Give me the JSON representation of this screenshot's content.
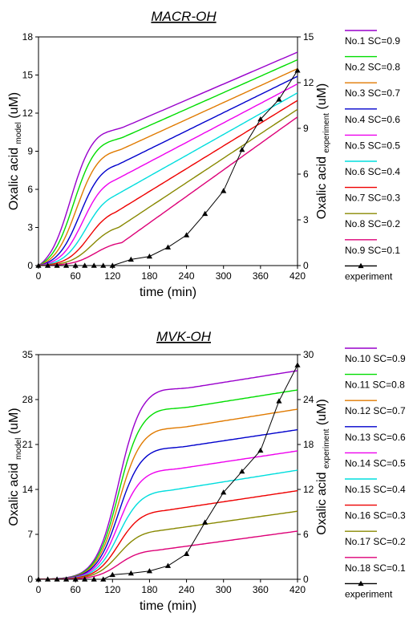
{
  "chart_data": [
    {
      "type": "line",
      "title": "MACR-OH",
      "xlabel": "time (min)",
      "ylabel_left": {
        "main": "Oxalic acid",
        "sub": "model",
        "unit": "(uM)"
      },
      "ylabel_right": {
        "main": "Oxalic acid",
        "sub": "experiment",
        "unit": "(uM)"
      },
      "xlim": [
        0,
        420
      ],
      "xticks": [
        0,
        60,
        120,
        180,
        240,
        300,
        360,
        420
      ],
      "ylim_left": [
        0,
        18
      ],
      "yticks_left": [
        0,
        3,
        6,
        9,
        12,
        15,
        18
      ],
      "ylim_right": [
        0,
        15
      ],
      "yticks_right": [
        0,
        3,
        6,
        9,
        12,
        15
      ],
      "grid": false,
      "legend_position": "right",
      "series": [
        {
          "name": "No.1 SC=0.9",
          "color": "#9900cc",
          "axis": "left",
          "model": {
            "final": 16.8,
            "knee_t": 95,
            "knee_v": 10.0,
            "half_t": 52
          }
        },
        {
          "name": "No.2 SC=0.8",
          "color": "#00dd00",
          "axis": "left",
          "model": {
            "final": 16.2,
            "knee_t": 100,
            "knee_v": 9.3,
            "half_t": 57
          }
        },
        {
          "name": "No.3 SC=0.7",
          "color": "#e07a00",
          "axis": "left",
          "model": {
            "final": 15.5,
            "knee_t": 105,
            "knee_v": 8.5,
            "half_t": 62
          }
        },
        {
          "name": "No.4 SC=0.6",
          "color": "#0000cc",
          "axis": "left",
          "model": {
            "final": 14.9,
            "knee_t": 110,
            "knee_v": 7.5,
            "half_t": 67
          }
        },
        {
          "name": "No.5 SC=0.5",
          "color": "#ee00ee",
          "axis": "left",
          "model": {
            "final": 14.3,
            "knee_t": 115,
            "knee_v": 6.5,
            "half_t": 72
          }
        },
        {
          "name": "No.6 SC=0.4",
          "color": "#00dddd",
          "axis": "left",
          "model": {
            "final": 13.6,
            "knee_t": 120,
            "knee_v": 5.4,
            "half_t": 77
          }
        },
        {
          "name": "No.7 SC=0.3",
          "color": "#ee0000",
          "axis": "left",
          "model": {
            "final": 13.0,
            "knee_t": 125,
            "knee_v": 4.2,
            "half_t": 82
          }
        },
        {
          "name": "No.8 SC=0.2",
          "color": "#888800",
          "axis": "left",
          "model": {
            "final": 12.3,
            "knee_t": 130,
            "knee_v": 3.0,
            "half_t": 87
          }
        },
        {
          "name": "No.9 SC=0.1",
          "color": "#dd0077",
          "axis": "left",
          "model": {
            "final": 11.7,
            "knee_t": 135,
            "knee_v": 1.8,
            "half_t": 92
          }
        },
        {
          "name": "experiment",
          "color": "#000000",
          "axis": "right",
          "marker": "triangle",
          "x": [
            0,
            15,
            30,
            45,
            60,
            75,
            90,
            105,
            120,
            150,
            180,
            210,
            240,
            270,
            300,
            330,
            360,
            390,
            420
          ],
          "y": [
            0,
            0,
            0,
            0,
            0,
            0,
            0,
            0,
            0,
            0.4,
            0.6,
            1.2,
            2.0,
            3.4,
            4.9,
            7.6,
            9.6,
            10.9,
            12.8
          ]
        }
      ]
    },
    {
      "type": "line",
      "title": "MVK-OH",
      "xlabel": "time (min)",
      "ylabel_left": {
        "main": "Oxalic acid",
        "sub": "model",
        "unit": "(uM)"
      },
      "ylabel_right": {
        "main": "Oxalic acid",
        "sub": "experiment",
        "unit": "(uM)"
      },
      "xlim": [
        0,
        420
      ],
      "xticks": [
        0,
        60,
        120,
        180,
        240,
        300,
        360,
        420
      ],
      "ylim_left": [
        0,
        35
      ],
      "yticks_left": [
        0,
        7,
        14,
        21,
        28,
        35
      ],
      "ylim_right": [
        0,
        30
      ],
      "yticks_right": [
        0,
        6,
        12,
        18,
        24,
        30
      ],
      "grid": false,
      "legend_position": "right",
      "series": [
        {
          "name": "No.10 SC=0.9",
          "color": "#9900cc",
          "axis": "left",
          "model": {
            "final": 32.5,
            "knee_t": 190,
            "knee_v": 29.0,
            "half_t": 130
          }
        },
        {
          "name": "No.11 SC=0.8",
          "color": "#00dd00",
          "axis": "left",
          "model": {
            "final": 29.5,
            "knee_t": 190,
            "knee_v": 26.0,
            "half_t": 130
          }
        },
        {
          "name": "No.12 SC=0.7",
          "color": "#e07a00",
          "axis": "left",
          "model": {
            "final": 26.5,
            "knee_t": 190,
            "knee_v": 23.0,
            "half_t": 130
          }
        },
        {
          "name": "No.13 SC=0.6",
          "color": "#0000cc",
          "axis": "left",
          "model": {
            "final": 23.3,
            "knee_t": 190,
            "knee_v": 20.0,
            "half_t": 130
          }
        },
        {
          "name": "No.14 SC=0.5",
          "color": "#ee00ee",
          "axis": "left",
          "model": {
            "final": 20.0,
            "knee_t": 190,
            "knee_v": 16.7,
            "half_t": 130
          }
        },
        {
          "name": "No.15 SC=0.4",
          "color": "#00dddd",
          "axis": "left",
          "model": {
            "final": 17.0,
            "knee_t": 190,
            "knee_v": 13.5,
            "half_t": 130
          }
        },
        {
          "name": "No.16 SC=0.3",
          "color": "#ee0000",
          "axis": "left",
          "model": {
            "final": 13.8,
            "knee_t": 190,
            "knee_v": 10.5,
            "half_t": 130
          }
        },
        {
          "name": "No.17 SC=0.2",
          "color": "#888800",
          "axis": "left",
          "model": {
            "final": 10.6,
            "knee_t": 190,
            "knee_v": 7.5,
            "half_t": 130
          }
        },
        {
          "name": "No.18 SC=0.1",
          "color": "#dd0077",
          "axis": "left",
          "model": {
            "final": 7.5,
            "knee_t": 190,
            "knee_v": 4.5,
            "half_t": 130
          }
        },
        {
          "name": "experiment",
          "color": "#000000",
          "axis": "right",
          "marker": "triangle",
          "x": [
            0,
            15,
            30,
            45,
            60,
            75,
            90,
            105,
            120,
            150,
            180,
            210,
            240,
            270,
            300,
            330,
            360,
            390,
            420
          ],
          "y": [
            0,
            0,
            0,
            0,
            0,
            0,
            0,
            0,
            0.6,
            0.8,
            1.1,
            1.8,
            3.4,
            7.6,
            11.6,
            14.4,
            17.2,
            23.8,
            28.6
          ]
        }
      ]
    }
  ]
}
